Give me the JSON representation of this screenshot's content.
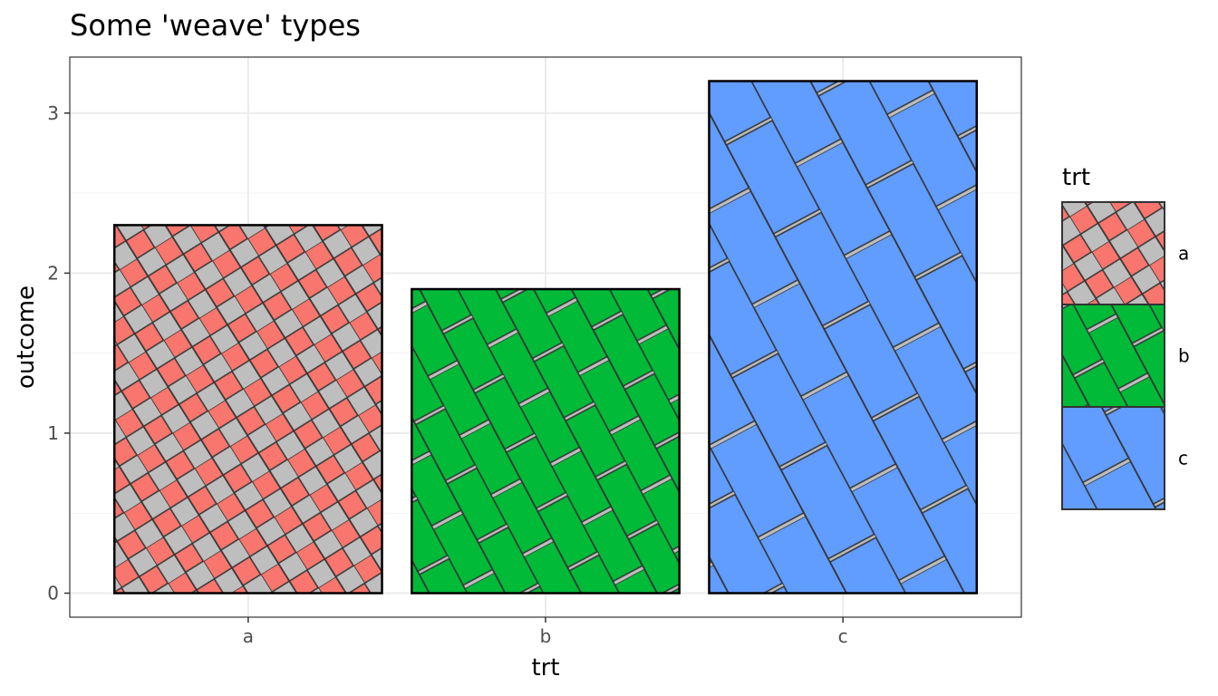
{
  "chart_data": {
    "type": "bar",
    "title": "Some 'weave' types",
    "xlabel": "trt",
    "ylabel": "outcome",
    "categories": [
      "a",
      "b",
      "c"
    ],
    "values": [
      2.3,
      1.9,
      3.2
    ],
    "ylim": [
      -0.15,
      3.35
    ],
    "yticks": [
      0,
      1,
      2,
      3
    ],
    "yticklabels": [
      "0",
      "1",
      "2",
      "3"
    ],
    "fill_colors": [
      "#F8766D",
      "#00BA38",
      "#619CFF"
    ],
    "pattern": "weave",
    "pattern_background": "#BEBEBE",
    "grid": true,
    "legend": {
      "title": "trt",
      "position": "right",
      "entries": [
        "a",
        "b",
        "c"
      ]
    }
  }
}
